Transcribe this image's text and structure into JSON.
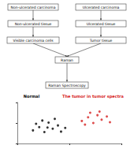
{
  "nodes": [
    {
      "label": "Non-ulcerated carcinoma"
    },
    {
      "label": "Ulcerated carcinoma"
    },
    {
      "label": "Non-ulcerated tissue"
    },
    {
      "label": "Ulcerated tissue"
    },
    {
      "label": "Visible carcinoma cells"
    },
    {
      "label": "Tumor tissue"
    },
    {
      "label": "Raman"
    },
    {
      "label": "Raman Spectroscopy"
    }
  ],
  "annotations": [
    {
      "text": "Normal",
      "color": "#000000"
    },
    {
      "text": "The tumor in tumor spectra",
      "color": "#d62020"
    }
  ],
  "chart_data": {
    "type": "scatter",
    "tick_labels": false,
    "xlim": [
      0,
      10
    ],
    "ylim": [
      0,
      10
    ],
    "xticks": [
      0,
      5,
      10
    ],
    "yticks": [
      0,
      5,
      10
    ],
    "series": [
      {
        "color": "#000000",
        "marker": "circle",
        "values": [
          [
            1.5,
            3.2
          ],
          [
            2.1,
            4.0
          ],
          [
            2.6,
            2.8
          ],
          [
            3.0,
            5.1
          ],
          [
            3.4,
            3.6
          ],
          [
            3.9,
            4.4
          ],
          [
            4.2,
            2.9
          ],
          [
            2.4,
            5.6
          ],
          [
            3.6,
            6.0
          ],
          [
            1.8,
            4.8
          ],
          [
            4.6,
            3.8
          ],
          [
            2.9,
            3.9
          ]
        ]
      },
      {
        "color": "#d62020",
        "marker": "circle",
        "values": [
          [
            6.2,
            5.5
          ],
          [
            6.8,
            6.4
          ],
          [
            7.3,
            5.0
          ],
          [
            7.7,
            6.9
          ],
          [
            8.1,
            5.8
          ],
          [
            8.6,
            6.6
          ],
          [
            7.0,
            7.5
          ],
          [
            8.9,
            5.2
          ],
          [
            6.5,
            4.6
          ],
          [
            7.9,
            7.8
          ]
        ]
      }
    ]
  }
}
